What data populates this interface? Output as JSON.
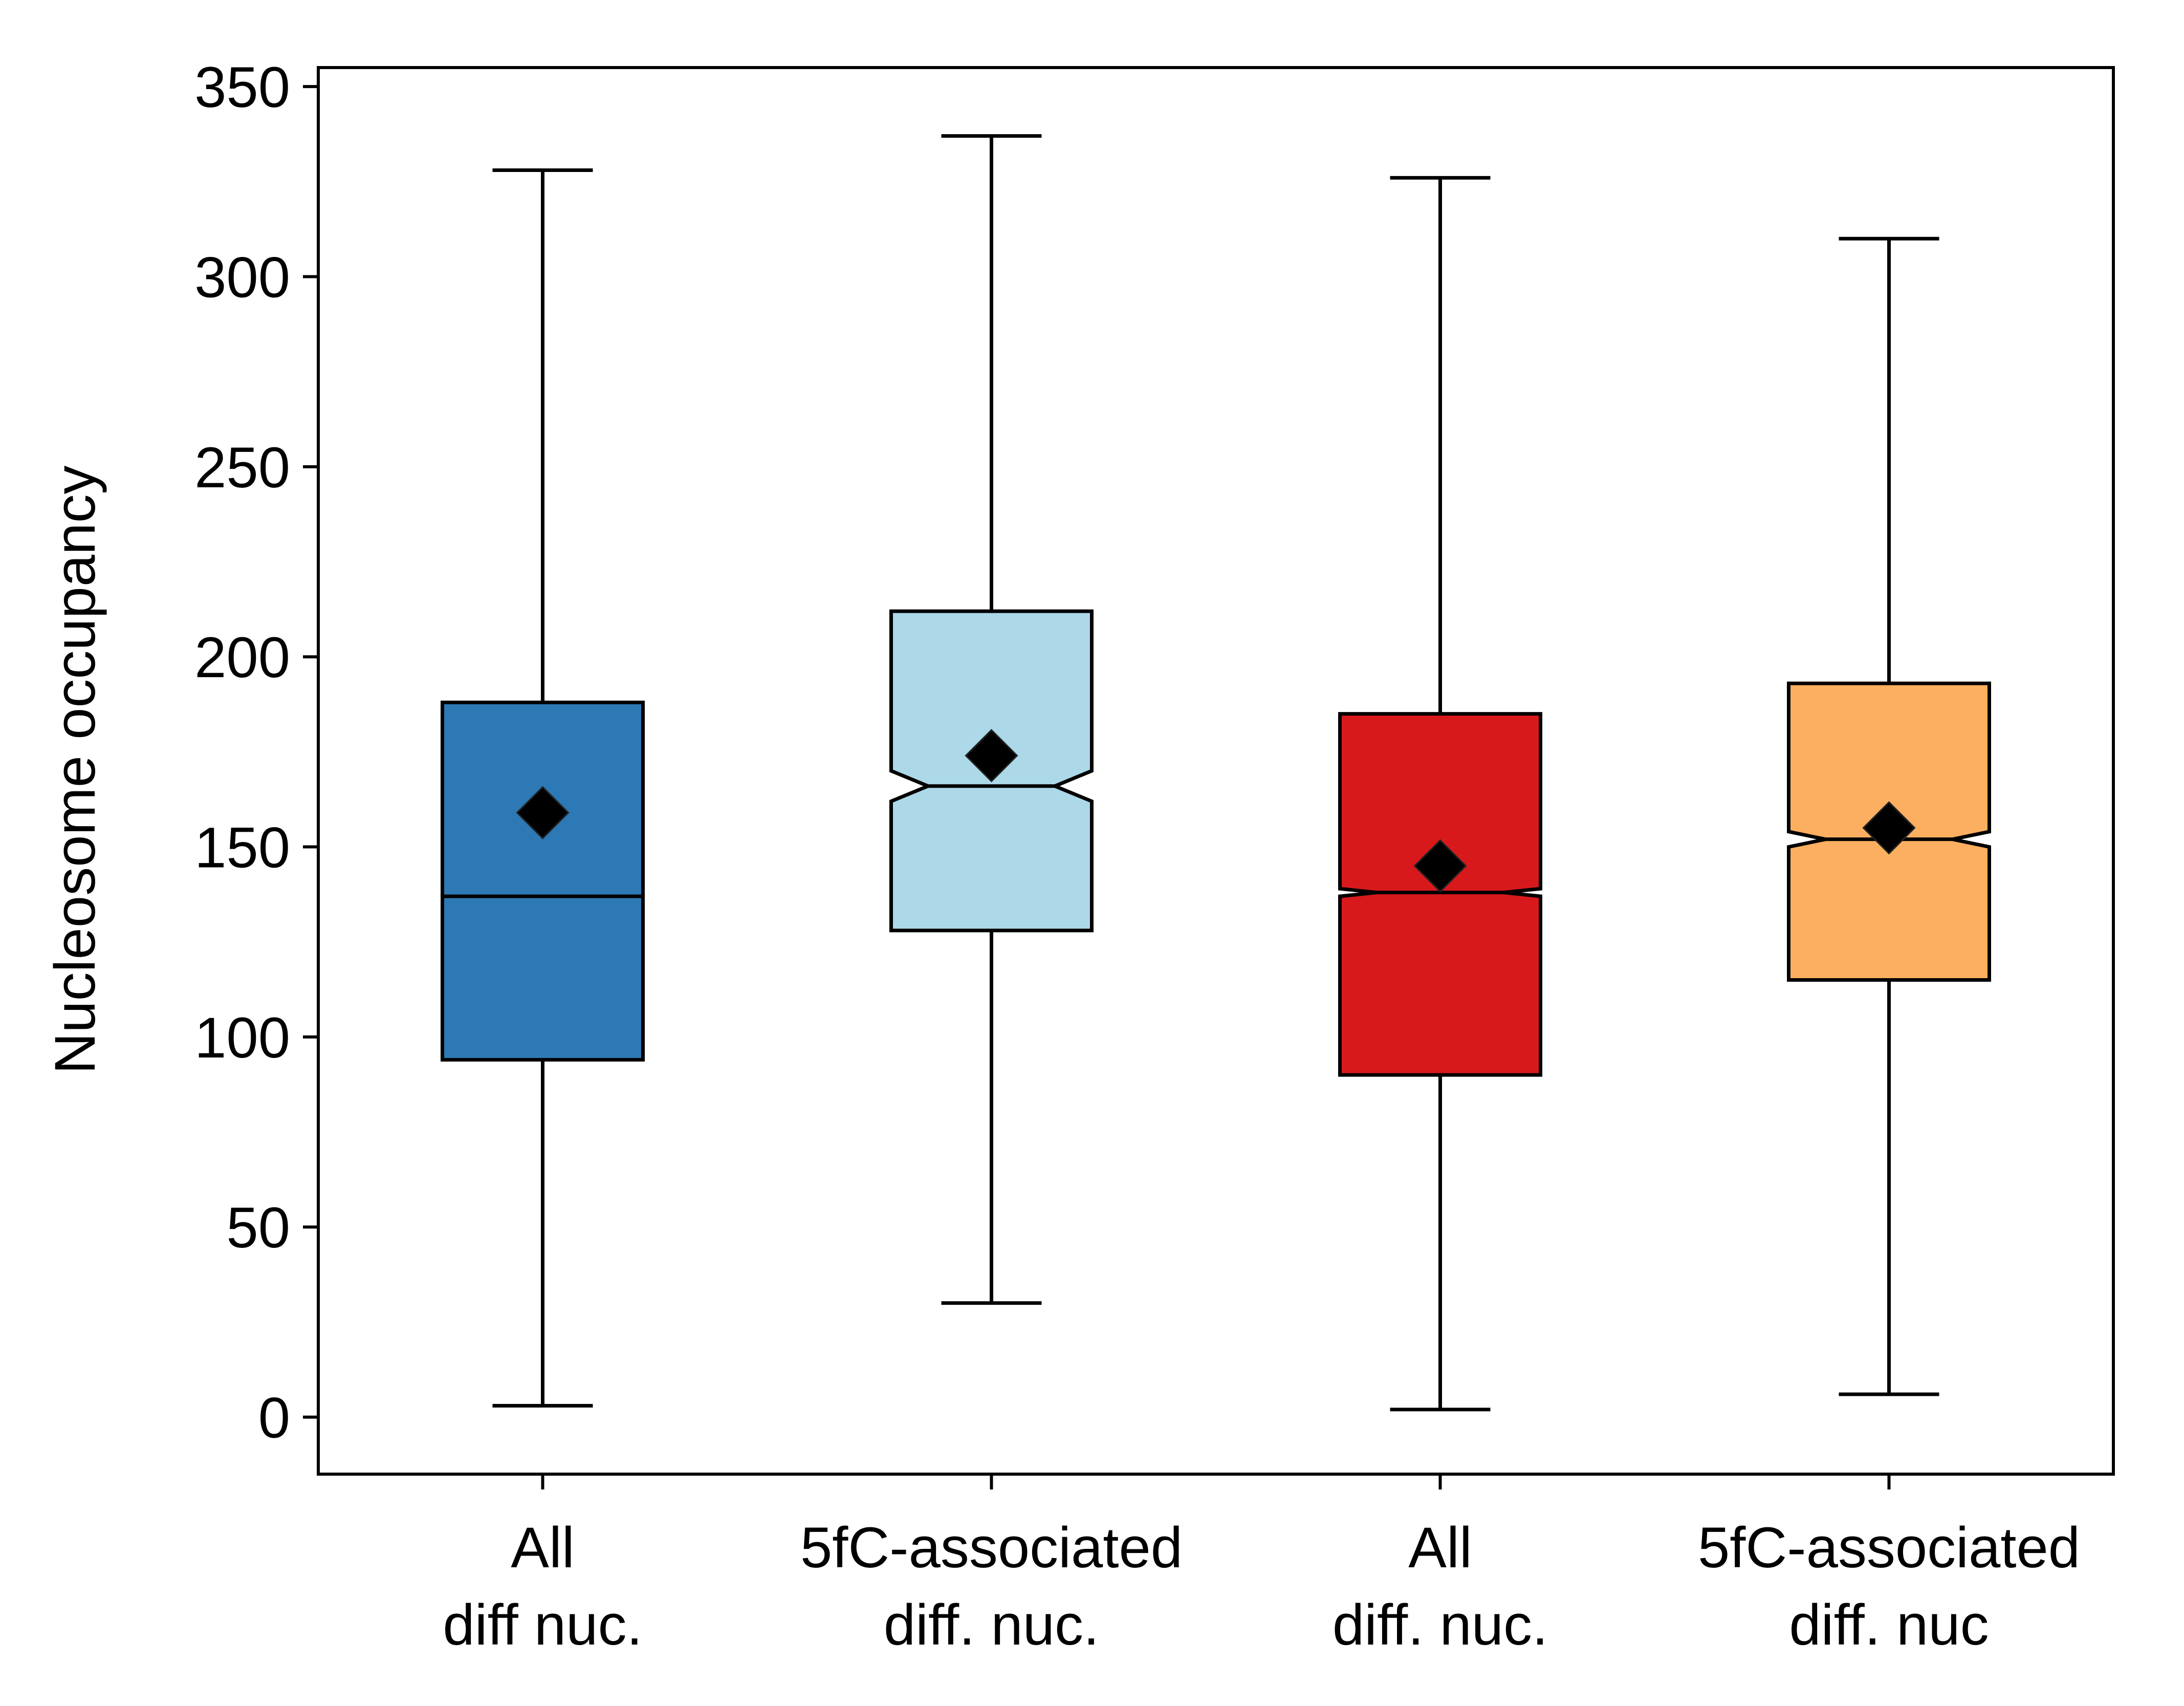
{
  "chart_data": {
    "type": "box",
    "title": "",
    "xlabel": "",
    "ylabel": "Nucleosome occupancy",
    "ylim": [
      -15,
      355
    ],
    "yticks": [
      0,
      50,
      100,
      150,
      200,
      250,
      300,
      350
    ],
    "ytick_labels": [
      "0",
      "50",
      "100",
      "150",
      "200",
      "250",
      "300",
      "350"
    ],
    "grid": false,
    "legend": "none",
    "categories": [
      {
        "line1": "All",
        "line2": "diff nuc."
      },
      {
        "line1": "5fC-associated",
        "line2": "diff. nuc."
      },
      {
        "line1": "All",
        "line2": "diff. nuc."
      },
      {
        "line1": "5fC-associated",
        "line2": "diff. nuc"
      }
    ],
    "boxes": [
      {
        "whisker_low": 3,
        "q1": 94,
        "median": 137,
        "q3": 188,
        "whisker_high": 328,
        "mean": 159,
        "notched": false,
        "color": "#2c79b5"
      },
      {
        "whisker_low": 30,
        "q1": 128,
        "median": 166,
        "q3": 212,
        "whisker_high": 337,
        "mean": 174,
        "notched": true,
        "notch_low": 162,
        "notch_high": 170,
        "color": "#acd8e8"
      },
      {
        "whisker_low": 2,
        "q1": 90,
        "median": 138,
        "q3": 185,
        "whisker_high": 326,
        "mean": 145,
        "notched": true,
        "notch_low": 137,
        "notch_high": 139,
        "color": "#d8191c"
      },
      {
        "whisker_low": 6,
        "q1": 115,
        "median": 152,
        "q3": 193,
        "whisker_high": 310,
        "mean": 155,
        "notched": true,
        "notch_low": 150,
        "notch_high": 154,
        "color": "#fcaf60"
      }
    ],
    "mean_marker": "diamond",
    "mean_marker_color": "#000000"
  }
}
